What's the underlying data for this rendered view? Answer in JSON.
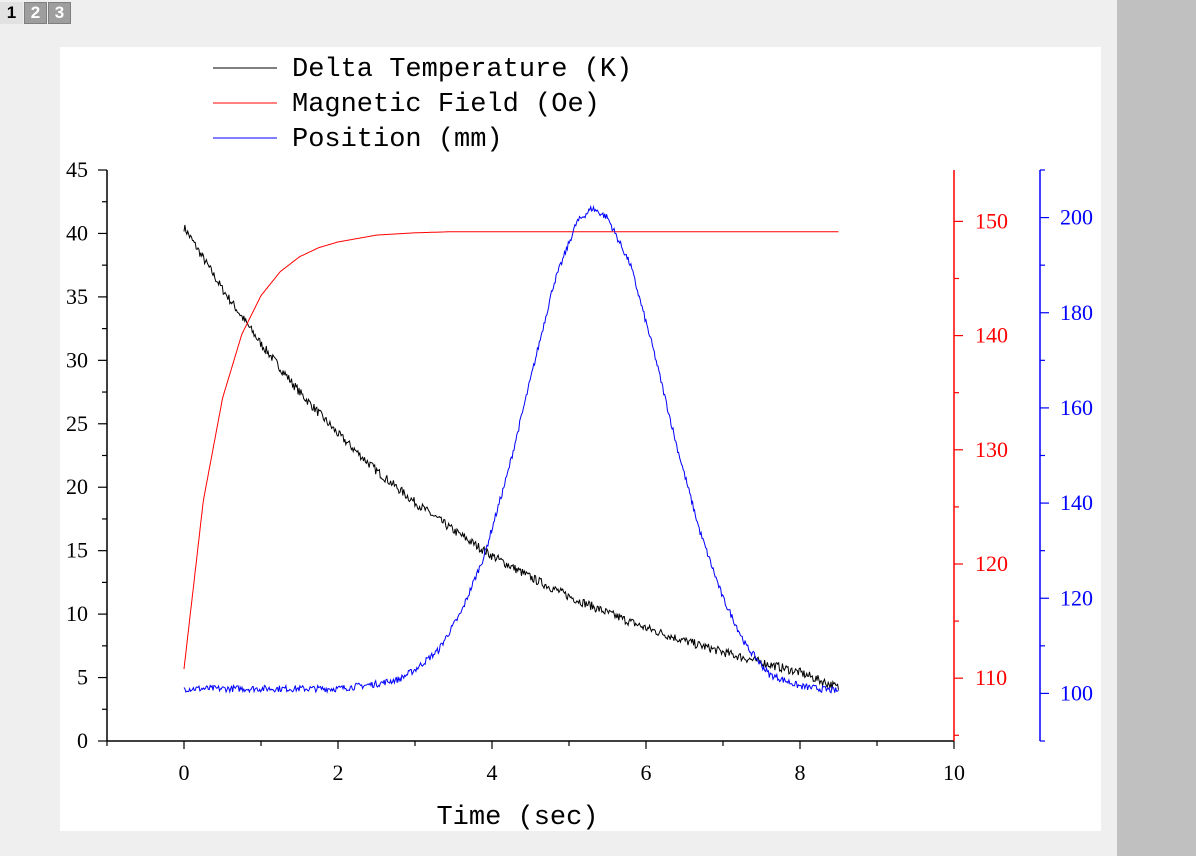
{
  "tabs": [
    {
      "label": "1",
      "active": true
    },
    {
      "label": "2",
      "active": false
    },
    {
      "label": "3",
      "active": false
    }
  ],
  "chart_data": {
    "type": "line",
    "title": "",
    "xlabel": "Time (sec)",
    "xlim": [
      -1,
      10
    ],
    "x_ticks": [
      "0",
      "2",
      "4",
      "6",
      "8",
      "10"
    ],
    "axes": {
      "left": {
        "ylim": [
          0,
          45
        ],
        "ticks": [
          "0",
          "5",
          "10",
          "15",
          "20",
          "25",
          "30",
          "35",
          "40",
          "45"
        ],
        "color": "#000000"
      },
      "right": {
        "ylim": [
          104.5,
          154.5
        ],
        "ticks": [
          "110",
          "120",
          "130",
          "140",
          "150"
        ],
        "color": "#ff0000"
      },
      "far_right": {
        "ylim": [
          90,
          210
        ],
        "ticks": [
          "100",
          "120",
          "140",
          "160",
          "180",
          "200"
        ],
        "color": "#0000ff"
      }
    },
    "legend_position": "top-left",
    "series": [
      {
        "name": "Delta Temperature (K)",
        "color": "#000000",
        "axis": "left",
        "x": [
          0,
          0.5,
          1,
          1.5,
          2,
          2.5,
          3,
          3.5,
          4,
          4.5,
          5,
          5.5,
          6,
          6.5,
          7,
          7.5,
          8,
          8.5
        ],
        "y": [
          40.5,
          35.6,
          31.3,
          27.5,
          24.2,
          21.3,
          18.8,
          16.6,
          14.6,
          12.9,
          11.4,
          10.1,
          8.9,
          7.9,
          7.0,
          6.2,
          5.4,
          4.2
        ]
      },
      {
        "name": "Magnetic Field (Oe)",
        "color": "#ff0000",
        "axis": "right",
        "x": [
          0,
          0.25,
          0.5,
          0.75,
          1,
          1.25,
          1.5,
          1.75,
          2,
          2.5,
          3,
          3.5,
          4,
          5,
          6,
          7,
          8,
          8.5
        ],
        "y": [
          110.8,
          125.5,
          134.5,
          140.1,
          143.5,
          145.6,
          146.9,
          147.7,
          148.2,
          148.8,
          149.0,
          149.1,
          149.1,
          149.1,
          149.1,
          149.1,
          149.1,
          149.1
        ]
      },
      {
        "name": "Position (mm)",
        "color": "#0000ff",
        "axis": "far_right",
        "x": [
          0,
          0.5,
          1,
          1.5,
          2,
          2.5,
          2.8,
          3.0,
          3.3,
          3.6,
          3.9,
          4.2,
          4.5,
          4.8,
          5.1,
          5.3,
          5.5,
          5.8,
          6.1,
          6.4,
          6.7,
          7.0,
          7.3,
          7.6,
          8.0,
          8.5
        ],
        "y": [
          101,
          101,
          101,
          101,
          101,
          102,
          103,
          105,
          109,
          117,
          129,
          146,
          166,
          186,
          199,
          202,
          200,
          190,
          172,
          152,
          134,
          120,
          110,
          104,
          101.5,
          100.5
        ]
      }
    ]
  }
}
